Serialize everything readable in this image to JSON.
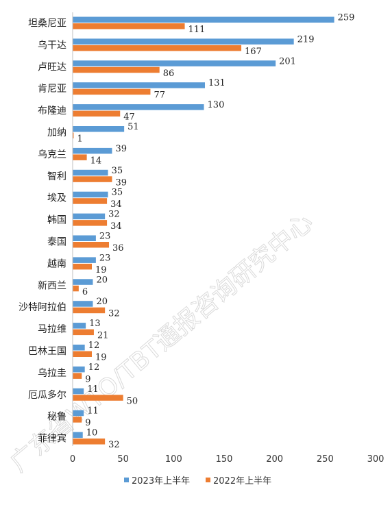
{
  "chart_data": {
    "type": "bar",
    "orientation": "horizontal",
    "categories": [
      "坦桑尼亚",
      "乌干达",
      "卢旺达",
      "肯尼亚",
      "布隆迪",
      "加纳",
      "乌克兰",
      "智利",
      "埃及",
      "韩国",
      "泰国",
      "越南",
      "新西兰",
      "沙特阿拉伯",
      "马拉维",
      "巴林王国",
      "乌拉圭",
      "厄瓜多尔",
      "秘鲁",
      "菲律宾"
    ],
    "series": [
      {
        "name": "2023年上半年",
        "color": "#5b9bd5",
        "values": [
          259,
          219,
          201,
          131,
          130,
          51,
          39,
          35,
          35,
          32,
          23,
          23,
          20,
          20,
          13,
          12,
          12,
          11,
          11,
          10
        ]
      },
      {
        "name": "2022年上半年",
        "color": "#ed7d31",
        "values": [
          111,
          167,
          86,
          77,
          47,
          1,
          14,
          39,
          34,
          34,
          36,
          19,
          6,
          32,
          21,
          19,
          9,
          50,
          9,
          32
        ]
      }
    ],
    "xlim": [
      0,
      300
    ],
    "xticks": [
      "0",
      "50",
      "100",
      "150",
      "200",
      "250",
      "300"
    ],
    "grid": false,
    "legend_position": "bottom",
    "title": "",
    "xlabel": "",
    "ylabel": ""
  },
  "watermark": "广东省WTO/TBT通报咨询研究中心"
}
